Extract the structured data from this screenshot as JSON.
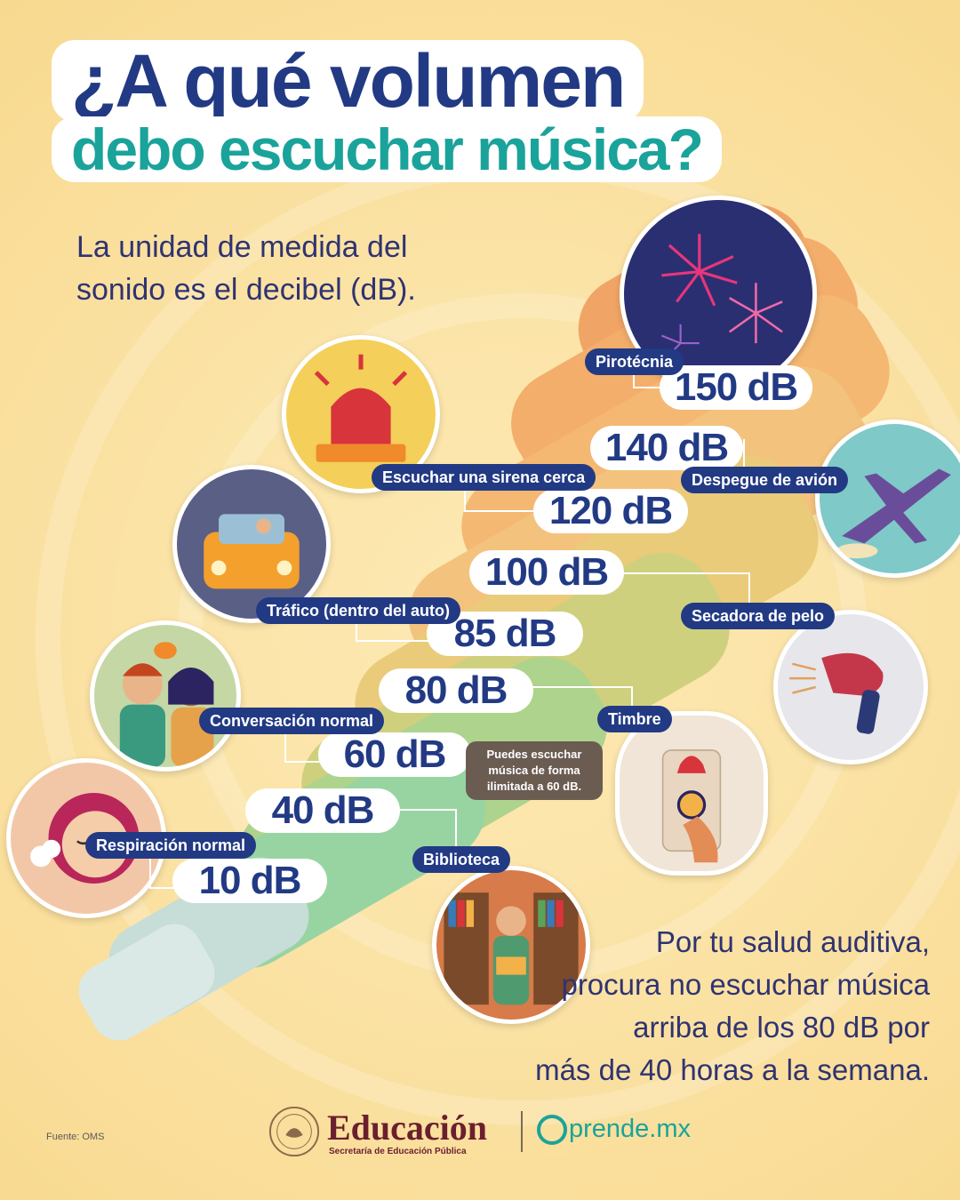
{
  "title": {
    "line1": "¿A qué volumen",
    "line2": "debo escuchar música?"
  },
  "subtitle": {
    "line1": "La unidad de medida del",
    "line2": "sonido es el decibel (dB)."
  },
  "levels": [
    {
      "db": "150 dB",
      "label": "Pirotécnia",
      "icon": "fireworks-icon"
    },
    {
      "db": "140 dB",
      "label": "Despegue de avión",
      "icon": "airplane-icon"
    },
    {
      "db": "120 dB",
      "label": "Escuchar una sirena cerca",
      "icon": "siren-icon"
    },
    {
      "db": "100 dB",
      "label": "Secadora de pelo",
      "icon": "hair-dryer-icon"
    },
    {
      "db": "85 dB",
      "label": "Tráfico (dentro del auto)",
      "icon": "car-traffic-icon"
    },
    {
      "db": "80 dB",
      "label": "Timbre",
      "icon": "doorbell-icon"
    },
    {
      "db": "60 dB",
      "label": "Conversación normal",
      "icon": "conversation-icon"
    },
    {
      "db": "40 dB",
      "label": "Biblioteca",
      "icon": "library-icon"
    },
    {
      "db": "10 dB",
      "label": "Respiración normal",
      "icon": "breathing-icon"
    }
  ],
  "note": {
    "line1": "Puedes escuchar",
    "line2": "música de forma",
    "line3": "ilimitada a 60 dB."
  },
  "advice": {
    "line1": "Por tu salud auditiva,",
    "line2": "procura no escuchar música",
    "line3": "arriba de los 80 dB por",
    "line4": "más de 40 horas a la semana."
  },
  "footer": {
    "source": "Fuente: OMS",
    "brand": "Educación",
    "brand_sub": "Secretaría de Educación Pública",
    "partner": "prende.mx"
  },
  "colors": {
    "navy": "#223a84",
    "teal": "#1aa39a",
    "background": "#fbe3a6",
    "brand": "#6b1f2e"
  }
}
